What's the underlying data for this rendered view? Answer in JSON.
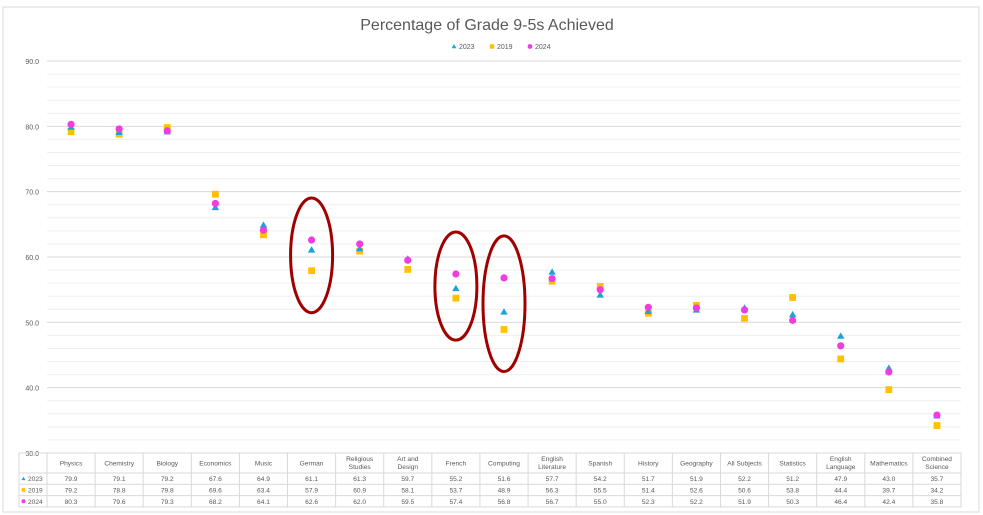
{
  "chart_data": {
    "type": "scatter",
    "title": "Percentage of Grade 9-5s Achieved",
    "categories": [
      "Physics",
      "Chemistry",
      "Biology",
      "Economics",
      "Music",
      "German",
      "Religious Studies",
      "Art and Design",
      "French",
      "Computing",
      "English Literature",
      "Spanish",
      "History",
      "Geography",
      "All Subjects",
      "Statistics",
      "English Language",
      "Mathematics",
      "Combined Science"
    ],
    "series": [
      {
        "name": "2023",
        "marker": "triangle",
        "color": "#1aa3d9",
        "values": [
          79.9,
          79.1,
          79.2,
          67.6,
          64.9,
          61.1,
          61.3,
          59.7,
          55.2,
          51.6,
          57.7,
          54.2,
          51.7,
          51.9,
          52.2,
          51.2,
          47.9,
          43.0,
          35.7
        ]
      },
      {
        "name": "2019",
        "marker": "square",
        "color": "#ffc000",
        "values": [
          79.2,
          78.8,
          79.8,
          69.6,
          63.4,
          57.9,
          60.9,
          58.1,
          53.7,
          48.9,
          56.3,
          55.5,
          51.4,
          52.6,
          50.6,
          53.8,
          44.4,
          39.7,
          34.2
        ]
      },
      {
        "name": "2024",
        "marker": "circle",
        "color": "#f03ce0",
        "values": [
          80.3,
          79.6,
          79.3,
          68.2,
          64.1,
          62.6,
          62.0,
          59.5,
          57.4,
          56.8,
          56.7,
          55.0,
          52.3,
          52.2,
          51.9,
          50.3,
          46.4,
          42.4,
          35.8
        ]
      }
    ],
    "ylim": [
      30,
      90
    ],
    "yticks": [
      "30.0",
      "40.0",
      "50.0",
      "60.0",
      "70.0",
      "80.0",
      "90.0"
    ],
    "legend_position": "top-center",
    "grid": true,
    "data_table": true,
    "highlighted_categories": [
      "German",
      "French",
      "Computing"
    ],
    "highlight_color": "#a00000"
  }
}
